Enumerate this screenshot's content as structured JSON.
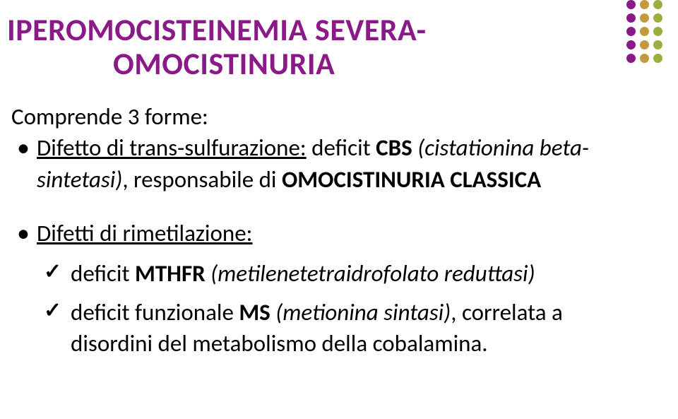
{
  "title": {
    "line1": "IPEROMOCISTEINEMIA SEVERA-",
    "line2": "OMOCISTINURIA",
    "color": "#8b1a89"
  },
  "intro": "Comprende 3 forme:",
  "bullets": [
    {
      "label_underline": "Difetto di trans-sulfurazione:",
      "rest_before": " deficit ",
      "bold": "CBS ",
      "italic": "(cistationina beta-sintetasi)",
      "rest_after": ", responsabile di ",
      "bold2": "OMOCISTINURIA CLASSICA"
    },
    {
      "label_underline": "Difetti di rimetilazione:",
      "sub": [
        {
          "prefix": "deficit ",
          "bold": "MTHFR ",
          "italic": "(metilenetetraidrofolato reduttasi)"
        },
        {
          "prefix": "deficit funzionale ",
          "bold": "MS ",
          "italic": "(metionina sintasi)",
          "rest": ", correlata a disordini del metabolismo della cobalamina."
        }
      ]
    }
  ],
  "decoration": {
    "columns": [
      {
        "color": "#8b1a89",
        "count": 5
      },
      {
        "color": "#c19a3f",
        "count": 5
      },
      {
        "color": "#9aaf3f",
        "count": 5
      }
    ]
  }
}
